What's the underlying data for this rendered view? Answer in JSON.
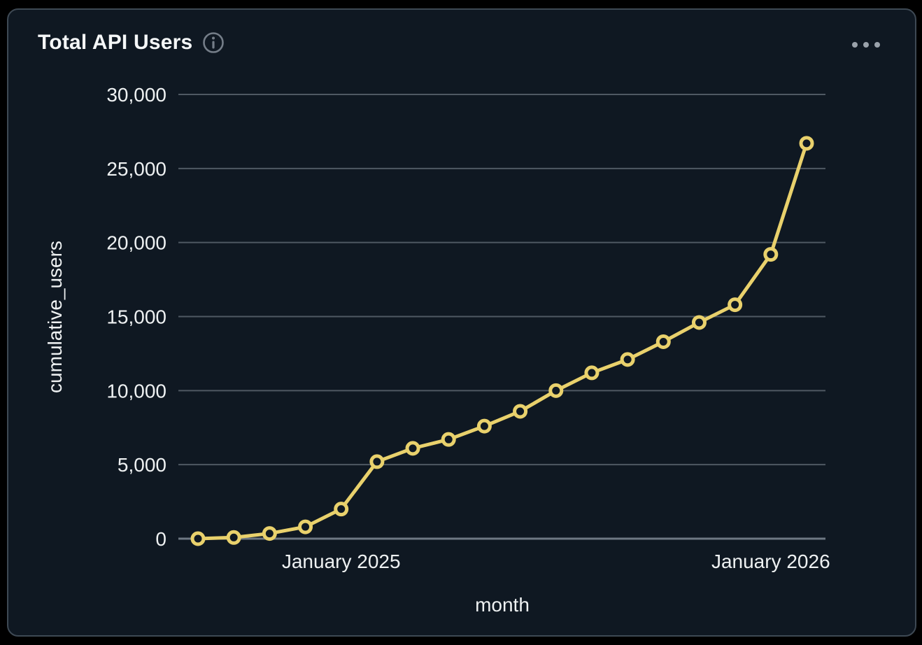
{
  "card": {
    "title": "Total API Users",
    "info_icon": "info",
    "menu_icon": "ellipsis-menu"
  },
  "colors": {
    "card_background": "#0f1822",
    "card_border": "#3e4954",
    "line": "#e9d16c",
    "gridline": "#4f5963",
    "axis_line": "#6e7883",
    "text": "#eef1f2",
    "icon_gray": "#747d88"
  },
  "chart_data": {
    "type": "line",
    "title": "Total API Users",
    "xlabel": "month",
    "ylabel": "cumulative_users",
    "series_name": "cumulative_users",
    "ylim": [
      0,
      30000
    ],
    "grid": true,
    "legend": "none",
    "x_estimated_months": [
      "2024-09",
      "2024-10",
      "2024-11",
      "2024-12",
      "2025-01",
      "2025-02",
      "2025-03",
      "2025-04",
      "2025-05",
      "2025-06",
      "2025-07",
      "2025-08",
      "2025-09",
      "2025-10",
      "2025-11",
      "2025-12",
      "2026-01",
      "2026-02"
    ],
    "values": [
      0,
      80,
      350,
      800,
      2000,
      5200,
      6100,
      6700,
      7600,
      8600,
      10000,
      11200,
      12100,
      13300,
      14600,
      15800,
      19200,
      26700
    ],
    "y_ticks": [
      {
        "value": 0,
        "label": "0"
      },
      {
        "value": 5000,
        "label": "5,000"
      },
      {
        "value": 10000,
        "label": "10,000"
      },
      {
        "value": 15000,
        "label": "15,000"
      },
      {
        "value": 20000,
        "label": "20,000"
      },
      {
        "value": 25000,
        "label": "25,000"
      },
      {
        "value": 30000,
        "label": "30,000"
      }
    ],
    "x_ticks": [
      {
        "index": 4,
        "label": "January 2025"
      },
      {
        "index": 16,
        "label": "January 2026"
      }
    ]
  }
}
